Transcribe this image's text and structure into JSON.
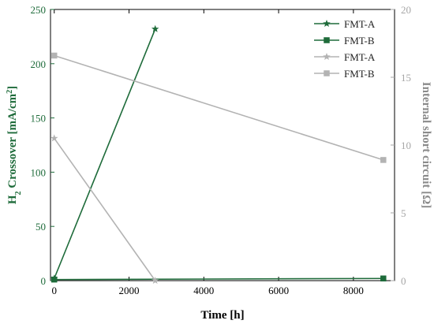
{
  "chart_data": {
    "type": "line",
    "dual_axis": true,
    "xlabel": "Time [h]",
    "ylabel_left": {
      "main": "H",
      "sub": "2",
      "rest": " Crossover [mA/cm",
      "sup": "2",
      "end": "]"
    },
    "ylabel_right": "Internal short circuit [Ω]",
    "xlim": [
      -100,
      9100
    ],
    "ylim_left": [
      0,
      250
    ],
    "ylim_right": [
      0,
      20
    ],
    "xticks": [
      0,
      2000,
      4000,
      6000,
      8000
    ],
    "xtick_labels": [
      "0",
      "2000",
      "4000",
      "6000",
      "8000"
    ],
    "yticks_left": [
      0,
      50,
      100,
      150,
      200,
      250
    ],
    "ytick_labels_left": [
      "0",
      "50",
      "100",
      "150",
      "200",
      "250"
    ],
    "yticks_right": [
      0,
      5,
      10,
      15,
      20
    ],
    "ytick_labels_right": [
      "0",
      "5",
      "10",
      "15",
      "20"
    ],
    "legend_position": "top-right",
    "colors": {
      "left_axis": "#1e6b3a",
      "right_axis": "#a6a6a6"
    },
    "series": [
      {
        "name": "FMT-A",
        "axis": "left",
        "marker": "star",
        "color": "#1e6b3a",
        "x": [
          0,
          2700
        ],
        "y": [
          2,
          232
        ]
      },
      {
        "name": "FMT-B",
        "axis": "left",
        "marker": "square",
        "color": "#1e6b3a",
        "x": [
          0,
          8800
        ],
        "y": [
          1,
          2
        ]
      },
      {
        "name": "FMT-A",
        "axis": "right",
        "marker": "star",
        "color": "#b3b3b3",
        "x": [
          0,
          2700
        ],
        "y": [
          10.5,
          0
        ]
      },
      {
        "name": "FMT-B",
        "axis": "right",
        "marker": "square",
        "color": "#b3b3b3",
        "x": [
          0,
          8800
        ],
        "y": [
          16.6,
          8.9
        ]
      }
    ]
  }
}
